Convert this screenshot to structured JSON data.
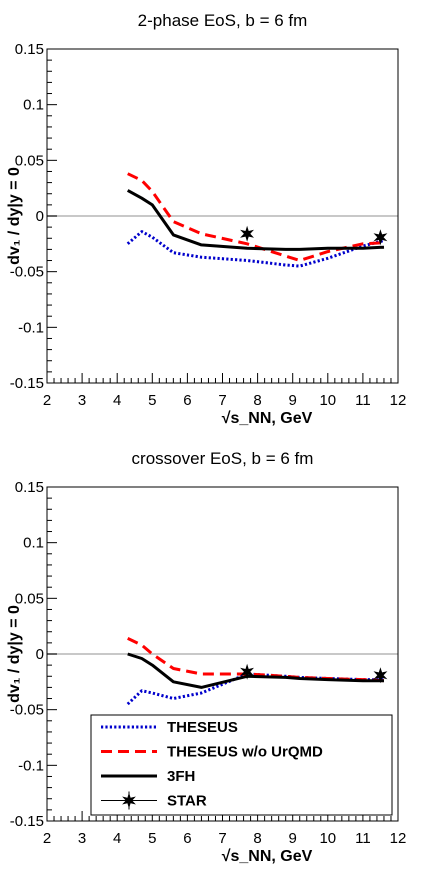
{
  "chart_data": [
    {
      "type": "line",
      "title": "2-phase EoS, b = 6 fm",
      "xlabel": "√s_NN, GeV",
      "ylabel": "dv₁ / dy|y = 0",
      "xlim": [
        2,
        12
      ],
      "ylim": [
        -0.15,
        0.15
      ],
      "xticks": [
        "2",
        "3",
        "4",
        "5",
        "6",
        "7",
        "8",
        "9",
        "10",
        "11",
        "12"
      ],
      "yticks": [
        "-0.15",
        "-0.1",
        "-0.05",
        "0",
        "0.05",
        "0.1",
        "0.15"
      ],
      "zero_line": true,
      "series": [
        {
          "name": "THESEUS",
          "color": "#0000cc",
          "style": "dotted",
          "x": [
            4.3,
            4.7,
            5.0,
            5.6,
            6.4,
            7.7,
            8.8,
            9.2,
            10.0,
            11.0,
            11.6
          ],
          "y": [
            -0.025,
            -0.014,
            -0.019,
            -0.033,
            -0.037,
            -0.04,
            -0.044,
            -0.045,
            -0.038,
            -0.027,
            -0.022
          ]
        },
        {
          "name": "THESEUS w/o UrQMD",
          "color": "#ff0000",
          "style": "dashed",
          "x": [
            4.3,
            4.7,
            5.0,
            5.6,
            6.4,
            7.7,
            8.8,
            9.2,
            10.0,
            11.0,
            11.6
          ],
          "y": [
            0.038,
            0.032,
            0.022,
            -0.005,
            -0.016,
            -0.025,
            -0.036,
            -0.04,
            -0.032,
            -0.025,
            -0.024
          ]
        },
        {
          "name": "3FH",
          "color": "#000000",
          "style": "solid",
          "x": [
            4.3,
            4.7,
            5.0,
            5.6,
            6.4,
            7.7,
            8.8,
            9.2,
            10.0,
            11.0,
            11.6
          ],
          "y": [
            0.023,
            0.016,
            0.01,
            -0.017,
            -0.026,
            -0.029,
            -0.03,
            -0.03,
            -0.029,
            -0.029,
            -0.028
          ]
        },
        {
          "name": "STAR",
          "color": "#000000",
          "style": "marker",
          "x": [
            7.7,
            11.5
          ],
          "y": [
            -0.016,
            -0.019
          ],
          "err": [
            0.004,
            0.003
          ]
        }
      ]
    },
    {
      "type": "line",
      "title": "crossover EoS, b = 6 fm",
      "xlabel": "√s_NN, GeV",
      "ylabel": "dv₁ / dy|y = 0",
      "xlim": [
        2,
        12
      ],
      "ylim": [
        -0.15,
        0.15
      ],
      "xticks": [
        "2",
        "3",
        "4",
        "5",
        "6",
        "7",
        "8",
        "9",
        "10",
        "11",
        "12"
      ],
      "yticks": [
        "-0.15",
        "-0.1",
        "-0.05",
        "0",
        "0.05",
        "0.1",
        "0.15"
      ],
      "zero_line": true,
      "legend_position": "bottom-center",
      "series": [
        {
          "name": "THESEUS",
          "color": "#0000cc",
          "style": "dotted",
          "x": [
            4.3,
            4.7,
            5.0,
            5.6,
            6.4,
            7.7,
            8.8,
            9.2,
            10.0,
            11.0,
            11.6
          ],
          "y": [
            -0.045,
            -0.033,
            -0.035,
            -0.04,
            -0.035,
            -0.018,
            -0.02,
            -0.021,
            -0.022,
            -0.023,
            -0.023
          ]
        },
        {
          "name": "THESEUS w/o UrQMD",
          "color": "#ff0000",
          "style": "dashed",
          "x": [
            4.3,
            4.7,
            5.0,
            5.6,
            6.4,
            7.7,
            8.8,
            9.2,
            10.0,
            11.0,
            11.6
          ],
          "y": [
            0.014,
            0.008,
            0.0,
            -0.013,
            -0.018,
            -0.018,
            -0.02,
            -0.021,
            -0.022,
            -0.023,
            -0.024
          ]
        },
        {
          "name": "3FH",
          "color": "#000000",
          "style": "solid",
          "x": [
            4.3,
            4.7,
            5.0,
            5.6,
            6.4,
            7.7,
            8.8,
            9.2,
            10.0,
            11.0,
            11.6
          ],
          "y": [
            0.0,
            -0.004,
            -0.01,
            -0.025,
            -0.03,
            -0.02,
            -0.021,
            -0.022,
            -0.023,
            -0.024,
            -0.024
          ]
        },
        {
          "name": "STAR",
          "color": "#000000",
          "style": "marker",
          "x": [
            7.7,
            11.5
          ],
          "y": [
            -0.016,
            -0.019
          ],
          "err": [
            0.004,
            0.003
          ]
        }
      ]
    }
  ]
}
